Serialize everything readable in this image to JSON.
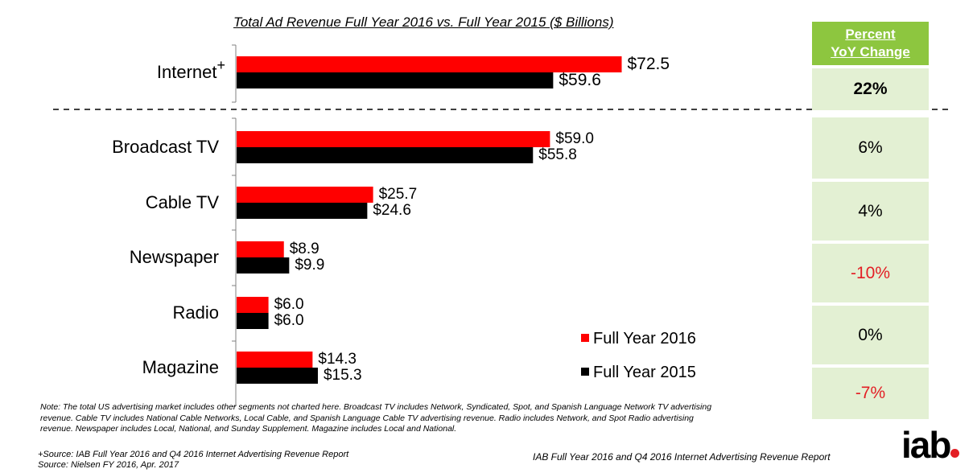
{
  "chart_data": {
    "type": "bar",
    "orientation": "horizontal",
    "title": "Total Ad Revenue Full Year 2016 vs. Full Year 2015 ($ Billions)",
    "categories": [
      "Internet",
      "Broadcast TV",
      "Cable TV",
      "Newspaper",
      "Radio",
      "Magazine"
    ],
    "series": [
      {
        "name": "Full Year 2016",
        "color": "#ff0000",
        "values": [
          72.5,
          59.0,
          25.7,
          8.9,
          6.0,
          14.3
        ],
        "labels": [
          "$72.5",
          "$59.0",
          "$25.7",
          "$8.9",
          "$6.0",
          "$14.3"
        ]
      },
      {
        "name": "Full Year 2015",
        "color": "#000000",
        "values": [
          59.6,
          55.8,
          24.6,
          9.9,
          6.0,
          15.3
        ],
        "labels": [
          "$59.6",
          "$55.8",
          "$24.6",
          "$9.9",
          "$6.0",
          "$15.3"
        ]
      }
    ],
    "legend_position": "bottom-right",
    "grid": false
  },
  "internet_superscript": "+",
  "yoy": {
    "header_line1": "Percent",
    "header_line2": "YoY Change",
    "values": [
      "22%",
      "6%",
      "4%",
      "-10%",
      "0%",
      "-7%"
    ],
    "colors": [
      "#000000",
      "#000000",
      "#000000",
      "#e31e24",
      "#000000",
      "#e31e24"
    ],
    "bold": [
      true,
      false,
      false,
      false,
      false,
      false
    ],
    "header_color": "#8dc63f",
    "cell_color": "#e3f0d3"
  },
  "note": "Note: The total US advertising market includes other segments not charted here. Broadcast TV includes Network, Syndicated, Spot, and Spanish Language Network TV advertising revenue. Cable TV includes National Cable Networks, Local Cable, and Spanish Language Cable TV advertising revenue. Radio includes Network, and Spot Radio advertising revenue. Newspaper includes Local, National, and Sunday Supplement. Magazine includes Local and National.",
  "sources": {
    "line1": "+Source: IAB Full Year 2016 and Q4 2016 Internet Advertising Revenue Report",
    "line2": "Source:  Nielsen FY 2016, Apr. 2017"
  },
  "footer_report": "IAB Full Year 2016 and Q4 2016 Internet Advertising Revenue Report",
  "logo_text": "iab"
}
